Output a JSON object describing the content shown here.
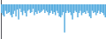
{
  "chart_data": {
    "type": "bar",
    "values": [
      -2.0,
      -2.5,
      -2.8,
      -1.5,
      -2.2,
      -2.0,
      -1.8,
      -2.5,
      -3.0,
      -2.2,
      -1.5,
      -2.8,
      -1.2,
      -3.5,
      -1.0,
      -1.8,
      -2.5,
      -1.5,
      -2.0,
      -2.8,
      -1.5,
      -1.2,
      -2.0,
      -1.8,
      -1.0,
      -2.5,
      -1.8,
      -2.2,
      -1.5,
      -2.0,
      -1.8,
      -1.5,
      -1.2,
      -2.0,
      -1.5,
      -1.8,
      -2.5,
      -2.0,
      -1.5,
      -2.2,
      -1.8,
      -2.5,
      -1.5,
      -2.0,
      -2.8,
      -3.0,
      -2.5,
      -1.8,
      -6.5,
      -2.0,
      -1.5,
      -2.0,
      -1.8,
      -2.5,
      -3.5,
      -2.0,
      -1.5,
      -1.8,
      -3.0,
      -2.0,
      -1.5,
      -2.5,
      -2.0,
      -1.8,
      -2.2,
      -1.5,
      -2.0,
      -2.8,
      -3.2,
      -1.5,
      -2.0,
      -1.8,
      -2.5,
      -2.0,
      -1.5,
      -2.2,
      -1.8,
      -2.0,
      -2.5,
      -3.0
    ],
    "color": "#5baee0",
    "ylim": [
      -8.0,
      1.0
    ],
    "tick_labels": false,
    "grid": false
  }
}
